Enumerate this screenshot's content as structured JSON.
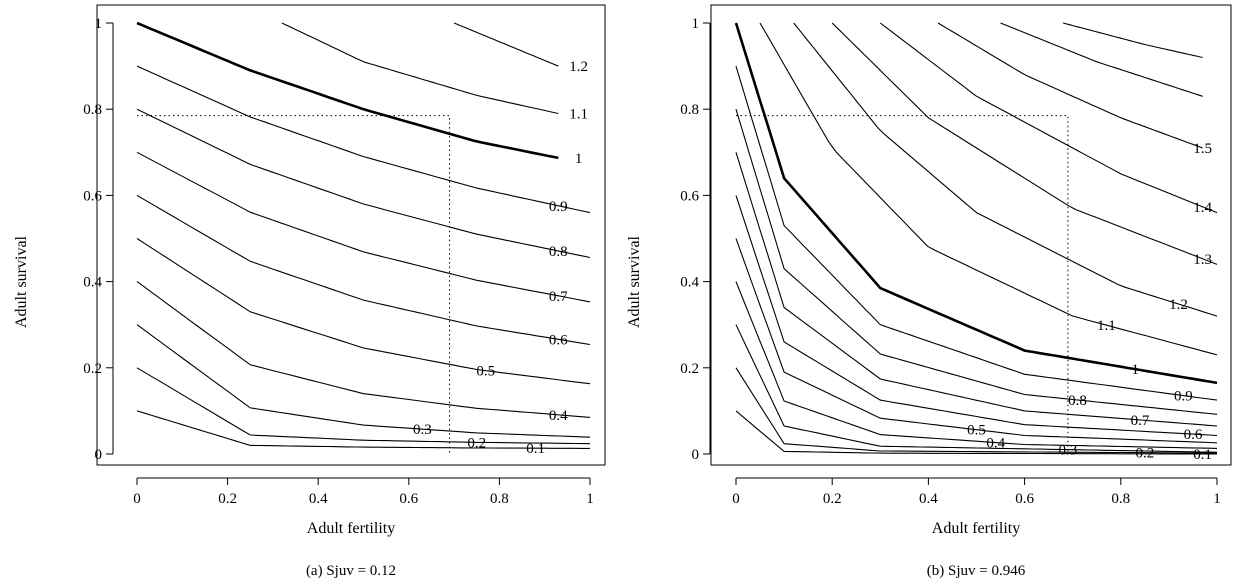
{
  "chart_data": [
    {
      "type": "line",
      "subtype": "contour",
      "caption": "(a)  Sjuv = 0.12",
      "xlabel": "Adult fertility",
      "ylabel": "Adult survival",
      "xlim": [
        0,
        1
      ],
      "ylim": [
        0,
        1
      ],
      "xticks": [
        "0",
        "0.2",
        "0.4",
        "0.6",
        "0.8",
        "1"
      ],
      "yticks": [
        "0",
        "0.2",
        "0.4",
        "0.6",
        "0.8",
        "1"
      ],
      "grid": false,
      "model": "lambda = s + 0.12 * f",
      "sjuv": 0.12,
      "reference_point": {
        "x": 0.69,
        "y": 0.785
      },
      "contours": [
        {
          "level": 0.1,
          "label": "0.1",
          "x": [
            0,
            0.25,
            0.5,
            0.75,
            1.0
          ],
          "y": [
            0.1,
            0.02,
            0.016,
            0.014,
            0.013
          ],
          "label_x": 0.88,
          "bold": false
        },
        {
          "level": 0.2,
          "label": "0.2",
          "x": [
            0,
            0.25,
            0.5,
            0.75,
            1.0
          ],
          "y": [
            0.2,
            0.044,
            0.032,
            0.027,
            0.024
          ],
          "label_x": 0.75,
          "bold": false
        },
        {
          "level": 0.3,
          "label": "0.3",
          "x": [
            0,
            0.25,
            0.5,
            0.75,
            1.0
          ],
          "y": [
            0.3,
            0.107,
            0.067,
            0.049,
            0.039
          ],
          "label_x": 0.63,
          "bold": false
        },
        {
          "level": 0.4,
          "label": "0.4",
          "x": [
            0,
            0.25,
            0.5,
            0.75,
            1.0
          ],
          "y": [
            0.4,
            0.207,
            0.14,
            0.106,
            0.085
          ],
          "label_x": 0.93,
          "bold": false
        },
        {
          "level": 0.5,
          "label": "0.5",
          "x": [
            0,
            0.25,
            0.5,
            0.75,
            1.0
          ],
          "y": [
            0.5,
            0.33,
            0.246,
            0.196,
            0.163
          ],
          "label_x": 0.77,
          "bold": false
        },
        {
          "level": 0.6,
          "label": "0.6",
          "x": [
            0,
            0.25,
            0.5,
            0.75,
            1.0
          ],
          "y": [
            0.6,
            0.447,
            0.357,
            0.297,
            0.254
          ],
          "label_x": 0.93,
          "bold": false
        },
        {
          "level": 0.7,
          "label": "0.7",
          "x": [
            0,
            0.25,
            0.5,
            0.75,
            1.0
          ],
          "y": [
            0.7,
            0.561,
            0.469,
            0.403,
            0.353
          ],
          "label_x": 0.93,
          "bold": false
        },
        {
          "level": 0.8,
          "label": "0.8",
          "x": [
            0,
            0.25,
            0.5,
            0.75,
            1.0
          ],
          "y": [
            0.8,
            0.672,
            0.58,
            0.51,
            0.456
          ],
          "label_x": 0.93,
          "bold": false
        },
        {
          "level": 0.9,
          "label": "0.9",
          "x": [
            0,
            0.25,
            0.5,
            0.75,
            1.0
          ],
          "y": [
            0.9,
            0.782,
            0.69,
            0.617,
            0.56
          ],
          "label_x": 0.93,
          "bold": false
        },
        {
          "level": 1.0,
          "label": "1",
          "x": [
            0,
            0.25,
            0.5,
            0.75,
            0.93
          ],
          "y": [
            1.0,
            0.89,
            0.8,
            0.725,
            0.687
          ],
          "label_x": 0.975,
          "bold": true
        },
        {
          "level": 1.1,
          "label": "1.1",
          "x": [
            0.32,
            0.5,
            0.75,
            0.93
          ],
          "y": [
            1.0,
            0.91,
            0.832,
            0.79
          ],
          "label_x": 0.975,
          "bold": false
        },
        {
          "level": 1.2,
          "label": "1.2",
          "x": [
            0.7,
            0.93
          ],
          "y": [
            1.0,
            0.9
          ],
          "label_x": 0.975,
          "bold": false
        }
      ]
    },
    {
      "type": "line",
      "subtype": "contour",
      "caption": "(b)  Sjuv = 0.946",
      "xlabel": "Adult fertility",
      "ylabel": "Adult survival",
      "xlim": [
        0,
        1
      ],
      "ylim": [
        0,
        1
      ],
      "xticks": [
        "0",
        "0.2",
        "0.4",
        "0.6",
        "0.8",
        "1"
      ],
      "yticks": [
        "0",
        "0.2",
        "0.4",
        "0.6",
        "0.8",
        "1"
      ],
      "grid": false,
      "model": "lambda = s + 0.946 * f",
      "sjuv": 0.946,
      "reference_point": {
        "x": 0.69,
        "y": 0.785
      },
      "contours": [
        {
          "level": 0.1,
          "label": "0.1",
          "x": [
            0,
            0.1,
            0.3,
            1.0
          ],
          "y": [
            0.1,
            0.006,
            0.002,
            0.0
          ],
          "label_x": 0.97,
          "bold": false
        },
        {
          "level": 0.2,
          "label": "0.2",
          "x": [
            0,
            0.1,
            0.3,
            1.0
          ],
          "y": [
            0.2,
            0.024,
            0.007,
            0.002
          ],
          "label_x": 0.85,
          "bold": false
        },
        {
          "level": 0.3,
          "label": "0.3",
          "x": [
            0,
            0.1,
            0.3,
            1.0
          ],
          "y": [
            0.3,
            0.065,
            0.018,
            0.004
          ],
          "label_x": 0.69,
          "bold": false
        },
        {
          "level": 0.4,
          "label": "0.4",
          "x": [
            0,
            0.1,
            0.3,
            0.6,
            1.0
          ],
          "y": [
            0.4,
            0.123,
            0.045,
            0.022,
            0.013
          ],
          "label_x": 0.54,
          "bold": false
        },
        {
          "level": 0.5,
          "label": "0.5",
          "x": [
            0,
            0.1,
            0.3,
            0.6,
            1.0
          ],
          "y": [
            0.5,
            0.19,
            0.083,
            0.043,
            0.026
          ],
          "label_x": 0.5,
          "bold": false
        },
        {
          "level": 0.6,
          "label": "0.6",
          "x": [
            0,
            0.1,
            0.3,
            0.6,
            1.0
          ],
          "y": [
            0.6,
            0.26,
            0.125,
            0.068,
            0.043
          ],
          "label_x": 0.95,
          "bold": false
        },
        {
          "level": 0.7,
          "label": "0.7",
          "x": [
            0,
            0.1,
            0.3,
            0.6,
            1.0
          ],
          "y": [
            0.7,
            0.34,
            0.174,
            0.1,
            0.065
          ],
          "label_x": 0.84,
          "bold": false
        },
        {
          "level": 0.8,
          "label": "0.8",
          "x": [
            0,
            0.1,
            0.3,
            0.6,
            1.0
          ],
          "y": [
            0.8,
            0.43,
            0.232,
            0.138,
            0.092
          ],
          "label_x": 0.71,
          "bold": false
        },
        {
          "level": 0.9,
          "label": "0.9",
          "x": [
            0,
            0.1,
            0.3,
            0.6,
            1.0
          ],
          "y": [
            0.9,
            0.53,
            0.3,
            0.185,
            0.125
          ],
          "label_x": 0.93,
          "bold": false
        },
        {
          "level": 1.0,
          "label": "1",
          "x": [
            0,
            0.1,
            0.3,
            0.6,
            1.0
          ],
          "y": [
            1.0,
            0.64,
            0.385,
            0.24,
            0.165
          ],
          "label_x": 0.83,
          "bold": true
        },
        {
          "level": 1.1,
          "label": "1.1",
          "x": [
            0.05,
            0.2,
            0.4,
            0.7,
            1.0
          ],
          "y": [
            1.0,
            0.71,
            0.48,
            0.32,
            0.23
          ],
          "label_x": 0.77,
          "bold": false
        },
        {
          "level": 1.2,
          "label": "1.2",
          "x": [
            0.12,
            0.3,
            0.5,
            0.8,
            1.0
          ],
          "y": [
            1.0,
            0.75,
            0.56,
            0.39,
            0.32
          ],
          "label_x": 0.92,
          "bold": false
        },
        {
          "level": 1.3,
          "label": "1.3",
          "x": [
            0.2,
            0.4,
            0.7,
            1.0
          ],
          "y": [
            1.0,
            0.78,
            0.57,
            0.44
          ],
          "label_x": 0.97,
          "bold": false
        },
        {
          "level": 1.4,
          "label": "1.4",
          "x": [
            0.3,
            0.5,
            0.8,
            1.0
          ],
          "y": [
            1.0,
            0.83,
            0.65,
            0.56
          ],
          "label_x": 0.97,
          "bold": false
        },
        {
          "level": 1.5,
          "label": "1.5",
          "x": [
            0.42,
            0.6,
            0.8,
            0.97
          ],
          "y": [
            1.0,
            0.88,
            0.78,
            0.71
          ],
          "label_x": 0.97,
          "bold": false
        },
        {
          "level": 1.6,
          "label": "",
          "x": [
            0.55,
            0.75,
            0.97
          ],
          "y": [
            1.0,
            0.91,
            0.83
          ],
          "label_x": null,
          "bold": false
        },
        {
          "level": 1.7,
          "label": "",
          "x": [
            0.68,
            0.85,
            0.97
          ],
          "y": [
            1.0,
            0.95,
            0.92
          ],
          "label_x": null,
          "bold": false
        }
      ]
    }
  ]
}
